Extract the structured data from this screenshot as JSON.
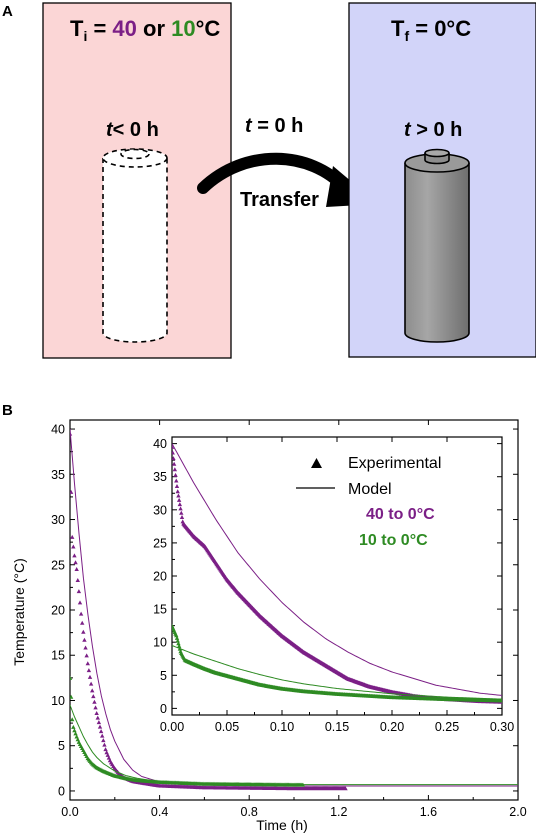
{
  "panel_a": {
    "label": "A",
    "left_box": {
      "title_prefix": "T",
      "title_sub": "i",
      "title_eq": " = ",
      "title_value_1": "40",
      "title_or": " or ",
      "title_value_2": "10",
      "title_unit": "°C",
      "time_var": "t",
      "time_rest": "< 0 h",
      "fill": "#fbd6d6"
    },
    "middle": {
      "time_var": "t",
      "time_rest": " = 0 h",
      "action": "Transfer"
    },
    "right_box": {
      "title_prefix": "T",
      "title_sub": "f",
      "title_rest": " = 0°C",
      "time_var": "t",
      "time_rest": " > 0 h",
      "fill": "#d2d4f9"
    }
  },
  "chart_data": [
    {
      "type": "scatter",
      "panel_label": "B",
      "xlabel": "Time (h)",
      "ylabel": "Temperature (°C)",
      "xlim": [
        0,
        2.0
      ],
      "ylim": [
        -1,
        41
      ],
      "xticks": [
        "0.0",
        "0.4",
        "0.8",
        "1.2",
        "1.6",
        "2.0"
      ],
      "yticks": [
        "0",
        "5",
        "10",
        "15",
        "20",
        "25",
        "30",
        "35",
        "40"
      ],
      "series": [
        {
          "name": "40 to 0°C",
          "kind": "experimental",
          "color": "#7b1f86",
          "x": [
            0.0,
            0.005,
            0.01,
            0.015,
            0.02,
            0.03,
            0.04,
            0.05,
            0.06,
            0.08,
            0.1,
            0.12,
            0.14,
            0.16,
            0.18,
            0.2,
            0.22,
            0.24,
            0.26,
            0.28,
            0.3,
            0.35,
            0.4,
            0.5,
            0.6,
            0.8,
            1.0,
            1.23
          ],
          "y": [
            39.5,
            33.0,
            28.0,
            27.0,
            26.0,
            24.5,
            22.0,
            19.5,
            17.5,
            14.0,
            11.0,
            8.5,
            6.5,
            4.5,
            3.3,
            2.5,
            1.9,
            1.5,
            1.3,
            1.1,
            1.0,
            0.8,
            0.6,
            0.5,
            0.4,
            0.35,
            0.3,
            0.3
          ]
        },
        {
          "name": "40 to 0°C",
          "kind": "model",
          "color": "#7b1f86",
          "x": [
            0.0,
            0.02,
            0.04,
            0.06,
            0.08,
            0.1,
            0.12,
            0.14,
            0.16,
            0.18,
            0.2,
            0.24,
            0.28,
            0.32,
            0.4,
            0.5,
            0.7,
            1.0,
            1.5,
            2.0
          ],
          "y": [
            40.0,
            34.0,
            28.5,
            23.5,
            19.5,
            16.0,
            13.0,
            10.5,
            8.5,
            6.8,
            5.5,
            3.5,
            2.3,
            1.6,
            1.0,
            0.7,
            0.6,
            0.55,
            0.55,
            0.55
          ]
        },
        {
          "name": "10 to 0°C",
          "kind": "experimental",
          "color": "#2e8b23",
          "x": [
            0.0,
            0.004,
            0.008,
            0.012,
            0.02,
            0.03,
            0.04,
            0.06,
            0.08,
            0.1,
            0.12,
            0.15,
            0.2,
            0.25,
            0.3,
            0.4,
            0.5,
            0.6,
            0.8,
            1.0,
            1.04
          ],
          "y": [
            12.5,
            11.0,
            8.5,
            7.3,
            6.7,
            6.0,
            5.4,
            4.5,
            3.6,
            3.0,
            2.6,
            2.2,
            1.7,
            1.4,
            1.2,
            1.0,
            0.9,
            0.8,
            0.75,
            0.7,
            0.7
          ]
        },
        {
          "name": "10 to 0°C",
          "kind": "model",
          "color": "#2e8b23",
          "x": [
            0.0,
            0.02,
            0.04,
            0.06,
            0.08,
            0.1,
            0.12,
            0.15,
            0.2,
            0.25,
            0.3,
            0.4,
            0.5,
            0.7,
            1.0,
            1.5,
            2.0
          ],
          "y": [
            9.5,
            8.2,
            7.1,
            6.0,
            5.1,
            4.3,
            3.7,
            3.0,
            2.2,
            1.7,
            1.4,
            1.0,
            0.85,
            0.75,
            0.7,
            0.7,
            0.7
          ]
        }
      ]
    },
    {
      "type": "scatter",
      "inset": true,
      "xlim": [
        0,
        0.3
      ],
      "ylim": [
        -1,
        41
      ],
      "xticks": [
        "0.00",
        "0.05",
        "0.10",
        "0.15",
        "0.20",
        "0.25",
        "0.30"
      ],
      "yticks": [
        "0",
        "5",
        "10",
        "15",
        "20",
        "25",
        "30",
        "35",
        "40"
      ],
      "legend": {
        "experimental": "Experimental",
        "model": "Model",
        "series_1": "40 to 0°C",
        "series_2": "10 to 0°C",
        "placement": "top-right"
      }
    }
  ]
}
